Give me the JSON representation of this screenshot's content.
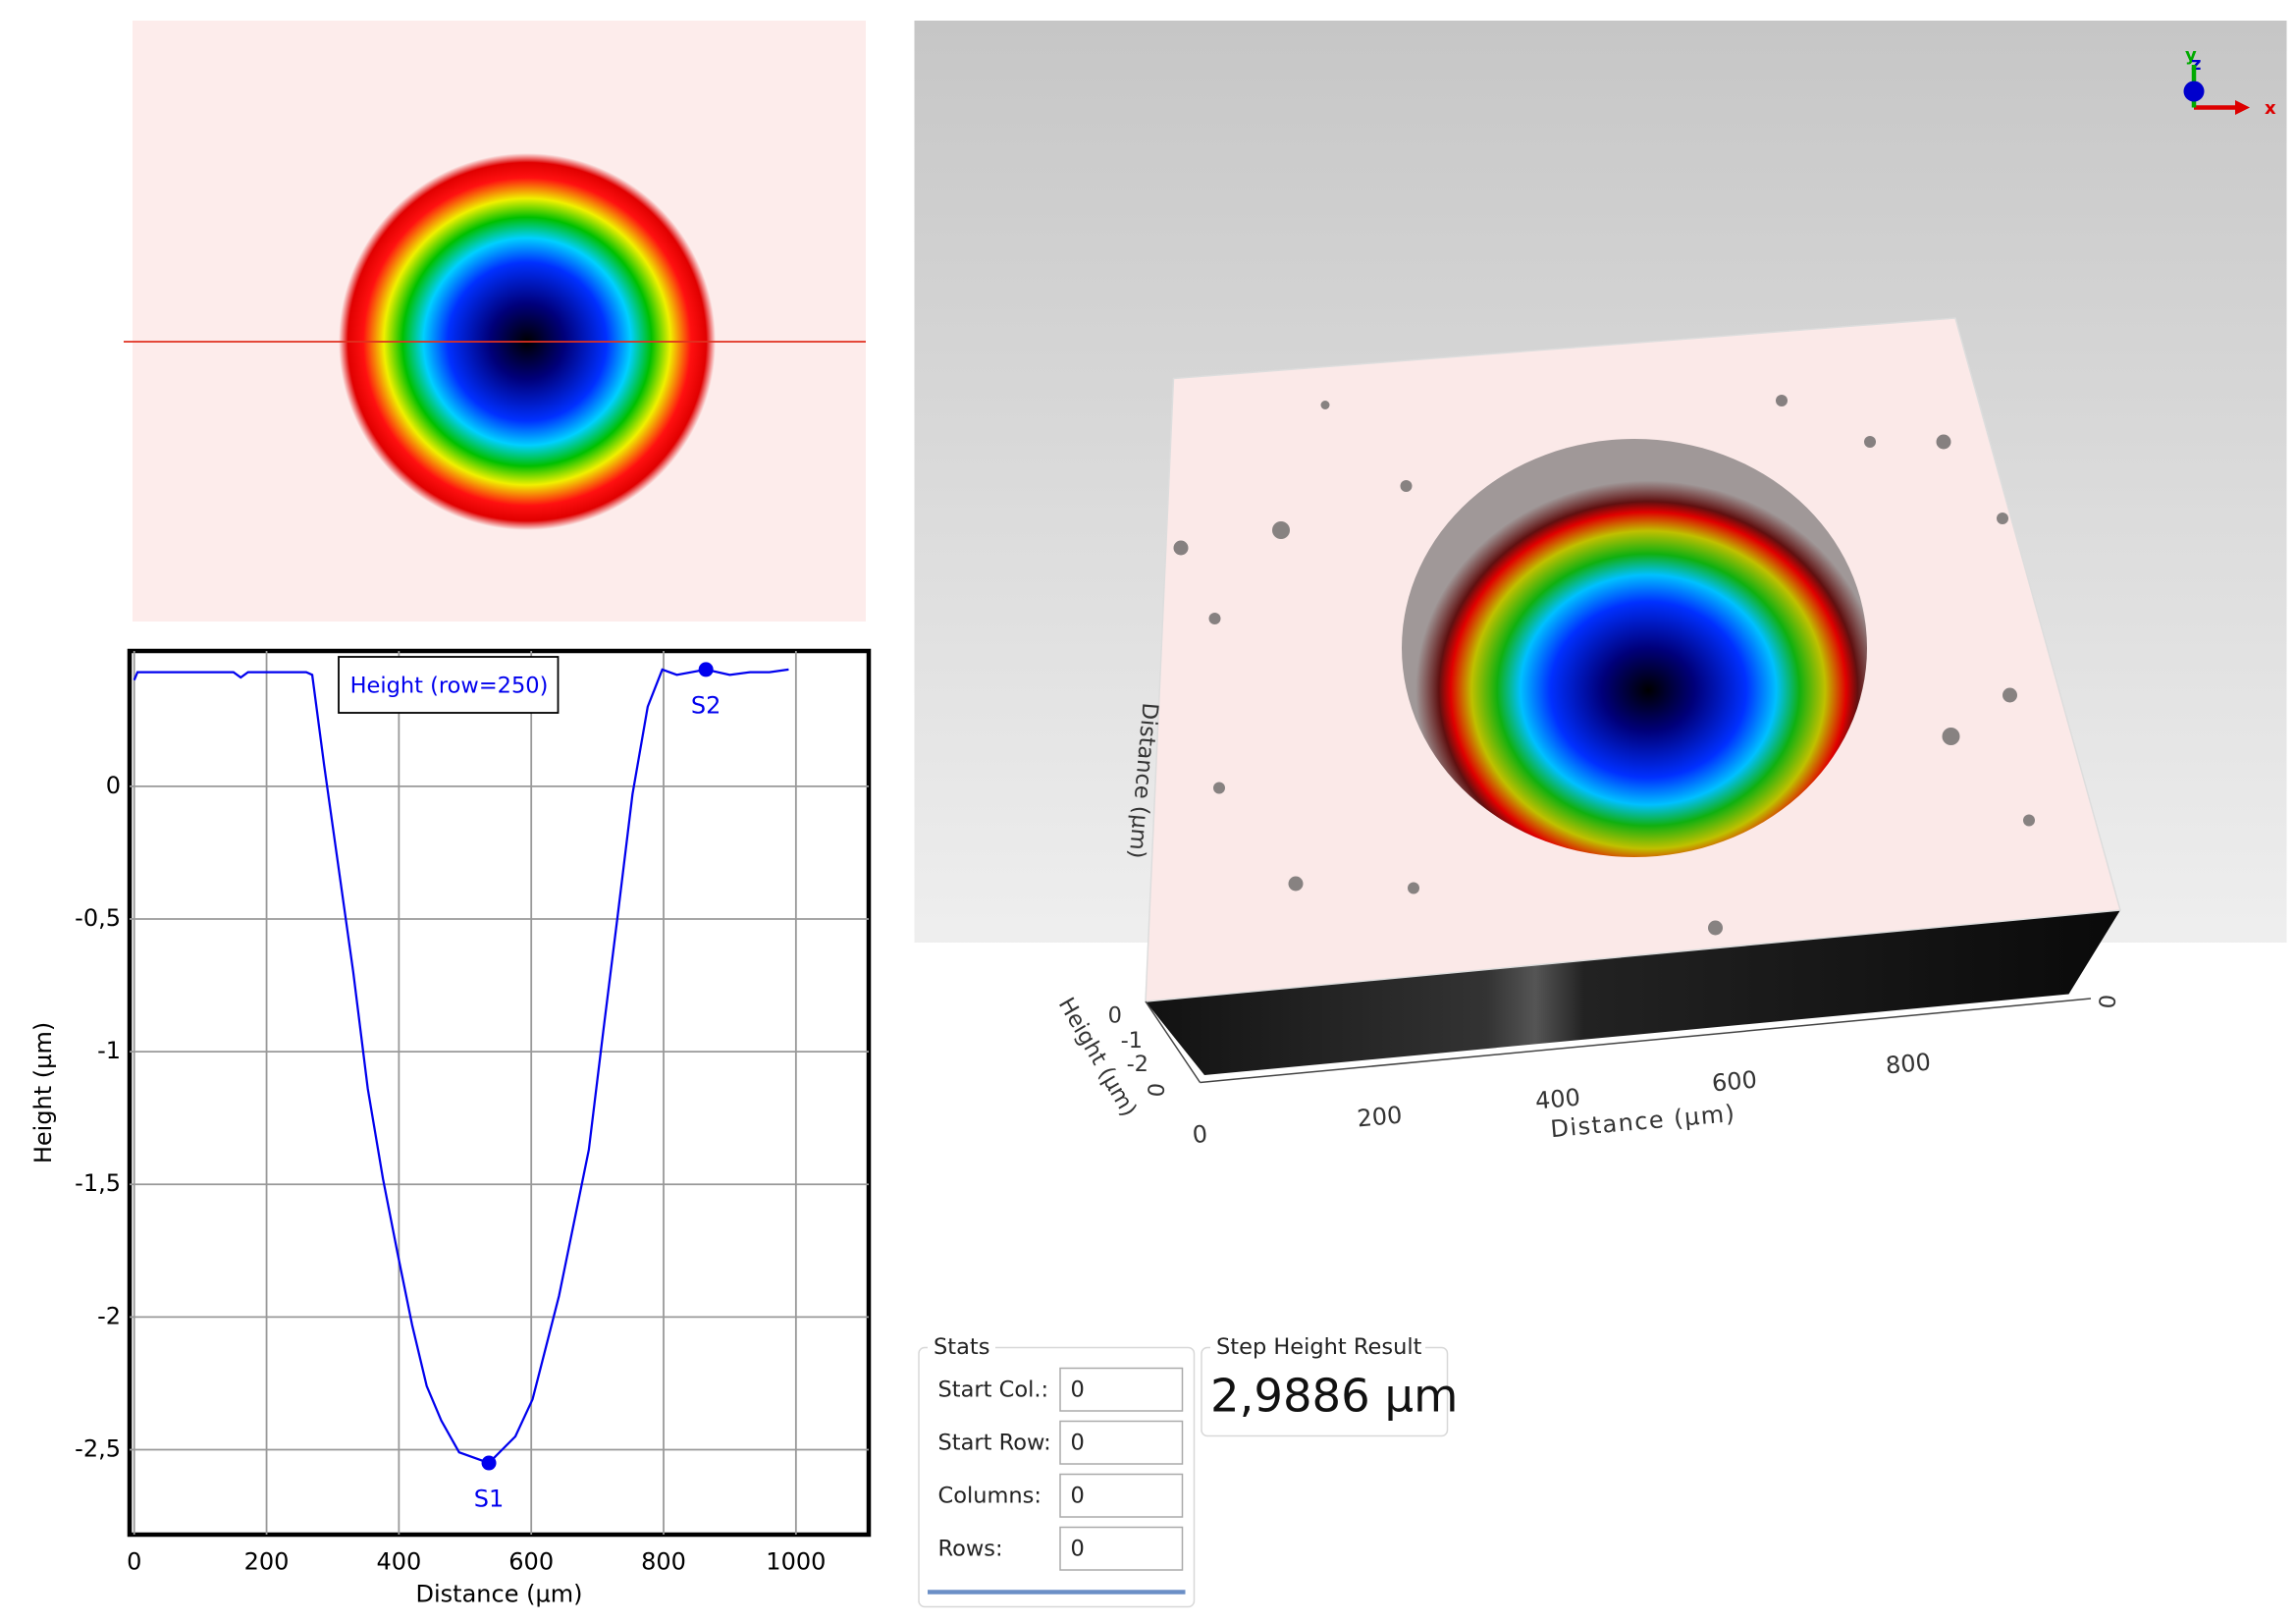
{
  "chart_data": {
    "type": "line",
    "x_label": "Distance (µm)",
    "y_label": "Height (µm)",
    "x": [
      0,
      5,
      60,
      120,
      150,
      161,
      172,
      220,
      260,
      269,
      287,
      309,
      331,
      353,
      376,
      398,
      420,
      442,
      464,
      491,
      536,
      576,
      602,
      642,
      687,
      709,
      731,
      753,
      776,
      798,
      820,
      864,
      900,
      931,
      960,
      989
    ],
    "series": [
      {
        "name": "Height (row=250)",
        "color": "#0000ee",
        "values": [
          0.4,
          0.43,
          0.43,
          0.43,
          0.43,
          0.41,
          0.43,
          0.43,
          0.43,
          0.42,
          0.08,
          -0.31,
          -0.7,
          -1.14,
          -1.48,
          -1.76,
          -2.03,
          -2.26,
          -2.39,
          -2.51,
          -2.55,
          -2.45,
          -2.31,
          -1.92,
          -1.37,
          -0.92,
          -0.48,
          -0.03,
          0.3,
          0.44,
          0.42,
          0.44,
          0.42,
          0.43,
          0.43,
          0.44
        ]
      }
    ],
    "points": [
      {
        "label": "S1",
        "x": 536,
        "y": -2.55
      },
      {
        "label": "S2",
        "x": 864,
        "y": 0.44
      }
    ],
    "xlim": [
      -7,
      1110
    ],
    "ylim": [
      -2.82,
      0.51
    ],
    "xticks": [
      0,
      200,
      400,
      600,
      800,
      1000
    ],
    "yticks": [
      0,
      {
        "value": -0.5,
        "label": "-0,5"
      },
      -1,
      {
        "value": -1.5,
        "label": "-1,5"
      },
      -2,
      {
        "value": -2.5,
        "label": "-2,5"
      }
    ],
    "grid": true
  },
  "view3d": {
    "triad": [
      "y",
      "z",
      "x"
    ],
    "x_label": "Distance (µm)",
    "x_ticks": [
      0,
      200,
      400,
      600,
      800
    ],
    "y_label": "Distance (µm)",
    "y_ticks": [
      0,
      0
    ],
    "z_label": "Height (µm)",
    "z_ticks": [
      0,
      -1,
      -2
    ]
  },
  "stats": {
    "title": "Stats",
    "rows": [
      {
        "label": "Start Col.:",
        "value": 0
      },
      {
        "label": "Start Row:",
        "value": 0
      },
      {
        "label": "Columns:",
        "value": 0
      },
      {
        "label": "Rows:",
        "value": 0
      }
    ]
  },
  "result": {
    "title": "Step Height Result",
    "value": "2,9886 µm"
  }
}
